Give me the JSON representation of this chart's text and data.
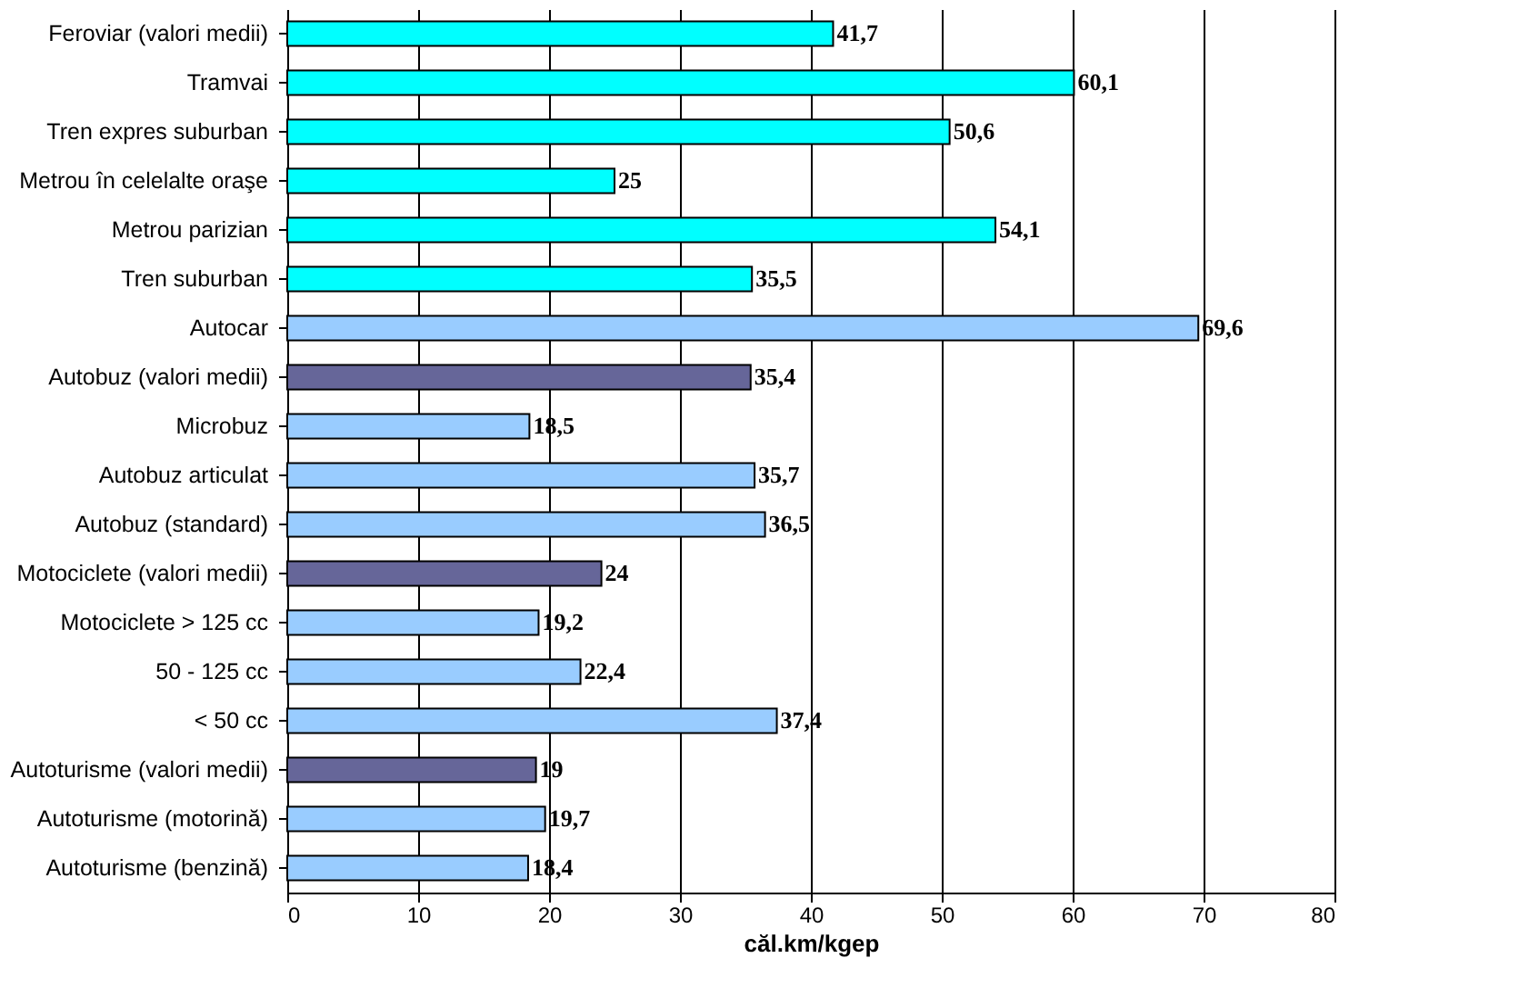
{
  "chart_data": {
    "type": "bar",
    "orientation": "horizontal",
    "xlabel": "căl.km/kgep",
    "categories": [
      "Feroviar (valori medii)",
      "Tramvai",
      "Tren expres suburban",
      "Metrou în celelalte oraşe",
      "Metrou parizian",
      "Tren suburban",
      "Autocar",
      "Autobuz (valori medii)",
      "Microbuz",
      "Autobuz articulat",
      "Autobuz (standard)",
      "Motociclete (valori medii)",
      "Motociclete > 125 cc",
      "50 - 125 cc",
      "< 50 cc",
      "Autoturisme (valori medii)",
      "Autoturisme (motorină)",
      "Autoturisme (benzină)"
    ],
    "values": [
      41.7,
      60.1,
      50.6,
      25,
      54.1,
      35.5,
      69.6,
      35.4,
      18.5,
      35.7,
      36.5,
      24,
      19.2,
      22.4,
      37.4,
      19,
      19.7,
      18.4
    ],
    "value_labels": [
      "41,7",
      "60,1",
      "50,6",
      "25",
      "54,1",
      "35,5",
      "69,6",
      "35,4",
      "18,5",
      "35,7",
      "36,5",
      "24",
      "19,2",
      "22,4",
      "37,4",
      "19",
      "19,7",
      "18,4"
    ],
    "colors": [
      "#00ffff",
      "#00ffff",
      "#00ffff",
      "#00ffff",
      "#00ffff",
      "#00ffff",
      "#99ccff",
      "#666699",
      "#99ccff",
      "#99ccff",
      "#99ccff",
      "#666699",
      "#99ccff",
      "#99ccff",
      "#99ccff",
      "#666699",
      "#99ccff",
      "#99ccff"
    ],
    "xlim": [
      0,
      80
    ],
    "xticks": [
      0,
      10,
      20,
      30,
      40,
      50,
      60,
      70,
      80
    ],
    "grid": "x"
  }
}
